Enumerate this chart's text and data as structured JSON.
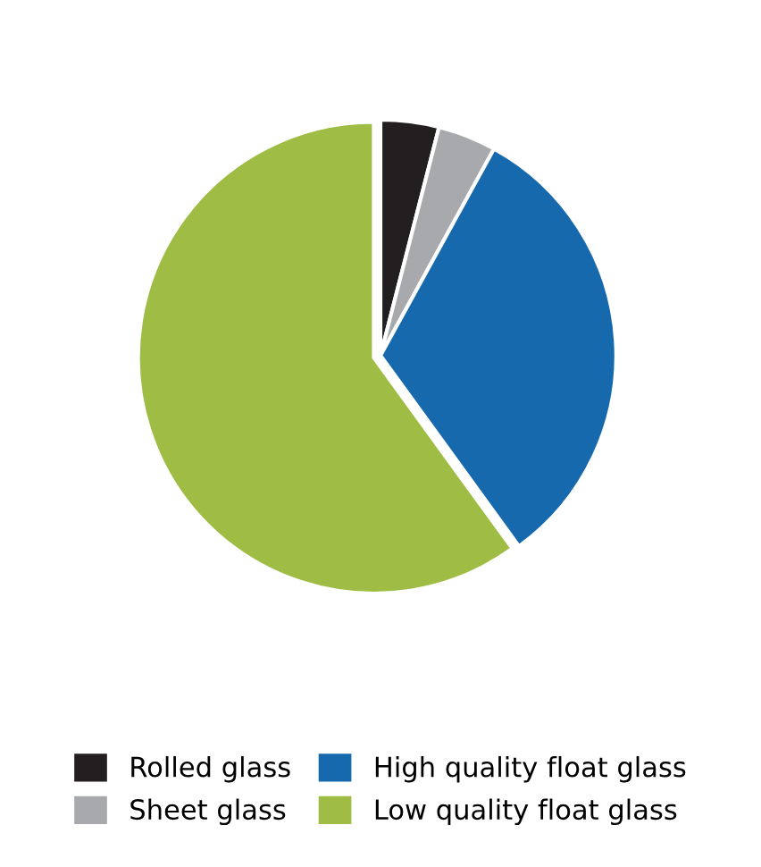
{
  "chart_data": {
    "type": "pie",
    "categories": [
      "Rolled glass",
      "Sheet glass",
      "High quality float glass",
      "Low quality float glass"
    ],
    "values": [
      4,
      4,
      32,
      60
    ],
    "colors": [
      "#231f20",
      "#a7a9ac",
      "#1769ae",
      "#9fbd45"
    ],
    "legend": "bottom"
  }
}
